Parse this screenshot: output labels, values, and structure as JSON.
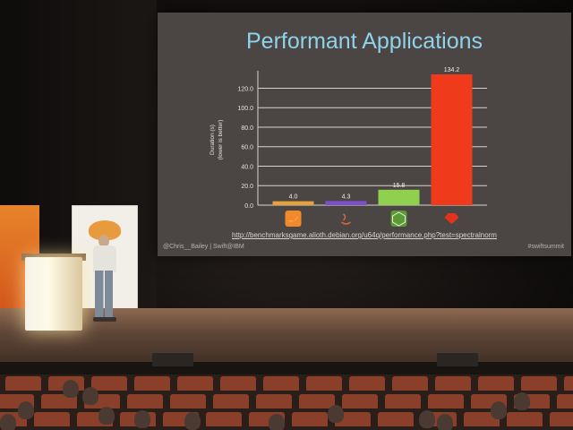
{
  "slide": {
    "title": "Performant Applications",
    "url": "http://benchmarksgame.alioth.debian.org/u64q/performance.php?test=spectralnorm",
    "footer_left": "@Chris__Bailey | Swift@IBM",
    "footer_right": "#swiftsummit"
  },
  "chart_data": {
    "type": "bar",
    "categories": [
      "Swift",
      "Java",
      "Node.js",
      "Ruby"
    ],
    "category_icons": [
      "swift-icon",
      "java-icon",
      "nodejs-icon",
      "ruby-icon"
    ],
    "values": [
      4.0,
      4.3,
      15.8,
      134.2
    ],
    "value_labels": [
      "4.0",
      "4.3",
      "15.8",
      "134.2"
    ],
    "colors": [
      "#e8a23a",
      "#7a4fc9",
      "#8fd14f",
      "#f03a1c"
    ],
    "ylabel": "Duration (s)",
    "ylabel_note": "(lower is better)",
    "ylim": [
      0,
      134.2
    ],
    "yticks": [
      0,
      20,
      40,
      60,
      80,
      100,
      120
    ],
    "ytick_labels": [
      "0.0",
      "20.0",
      "40.0",
      "60.0",
      "80.0",
      "100.0",
      "120.0"
    ],
    "grid": true,
    "title": ""
  }
}
